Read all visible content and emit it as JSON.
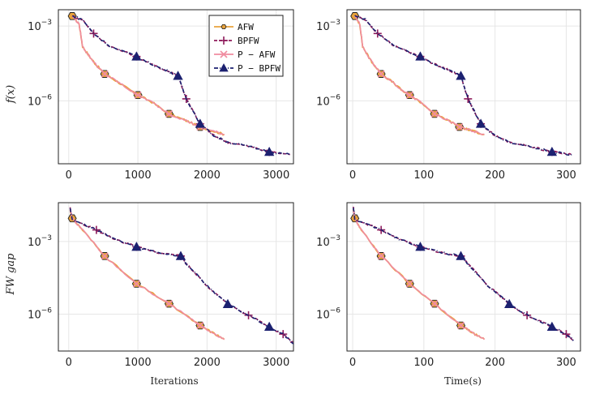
{
  "colors": {
    "AFW": "#E8A33D",
    "BPFW": "#8E1B5B",
    "P_AFW": "#F08CA0",
    "P_BPFW": "#1C2170"
  },
  "chart_data": [
    {
      "type": "line",
      "panel": "top-left",
      "xlabel": "",
      "ylabel": "f(x)",
      "yscale": "log",
      "xlim": [
        -150,
        3250
      ],
      "ylim": [
        3e-09,
        0.0045
      ],
      "xticks": [
        0,
        1000,
        2000,
        3000
      ],
      "yticks": [
        {
          "value": 0.001,
          "label": "10",
          "exp": "−3"
        },
        {
          "value": 1e-06,
          "label": "10",
          "exp": "−6"
        }
      ],
      "legend": {
        "position": "top-right",
        "entries": [
          "AFW",
          "BPFW",
          "P − AFW",
          "P − BPFW"
        ]
      },
      "series": [
        {
          "name": "AFW",
          "x": [
            50,
            150,
            200,
            300,
            400,
            520,
            700,
            900,
            1000,
            1200,
            1450,
            1700,
            1900,
            2100,
            2250
          ],
          "y": [
            0.0025,
            0.0012,
            0.00015,
            6e-05,
            2.7e-05,
            1.2e-05,
            6e-06,
            2.5e-06,
            1.7e-06,
            9e-07,
            3e-07,
            1.6e-07,
            9e-08,
            6e-08,
            4.5e-08
          ]
        },
        {
          "name": "BPFW",
          "x": [
            50,
            200,
            360,
            600,
            980,
            1250,
            1450,
            1580,
            1700,
            1900,
            2100,
            2300,
            2600,
            2900,
            3200
          ],
          "y": [
            0.0025,
            0.0018,
            0.0005,
            0.00015,
            6e-05,
            2.5e-05,
            1.5e-05,
            1e-05,
            1.2e-06,
            1.2e-07,
            4e-08,
            2.2e-08,
            1.5e-08,
            9e-09,
            7e-09
          ]
        },
        {
          "name": "P − AFW",
          "x": [
            50,
            150,
            200,
            300,
            400,
            520,
            700,
            900,
            1000,
            1200,
            1450,
            1700,
            1900,
            2100,
            2250
          ],
          "y": [
            0.0025,
            0.0012,
            0.00015,
            6e-05,
            2.7e-05,
            1.2e-05,
            6e-06,
            2.5e-06,
            1.7e-06,
            9e-07,
            3e-07,
            1.6e-07,
            9e-08,
            6e-08,
            4.5e-08
          ]
        },
        {
          "name": "P − BPFW",
          "x": [
            50,
            200,
            360,
            600,
            980,
            1250,
            1450,
            1580,
            1700,
            1900,
            2100,
            2300,
            2600,
            2900,
            3200
          ],
          "y": [
            0.0025,
            0.0018,
            0.0005,
            0.00015,
            6e-05,
            2.5e-05,
            1.5e-05,
            1e-05,
            1.2e-06,
            1.2e-07,
            4e-08,
            2.2e-08,
            1.5e-08,
            9e-09,
            7e-09
          ]
        }
      ]
    },
    {
      "type": "line",
      "panel": "top-right",
      "xlabel": "",
      "ylabel": "",
      "yscale": "log",
      "xlim": [
        -8,
        320
      ],
      "ylim": [
        3e-09,
        0.0045
      ],
      "xticks": [
        0,
        100,
        200,
        300
      ],
      "yticks": [
        {
          "value": 0.001,
          "label": "10",
          "exp": "−3"
        },
        {
          "value": 1e-06,
          "label": "10",
          "exp": "−6"
        }
      ],
      "series": [
        {
          "name": "AFW",
          "x": [
            3,
            10,
            14,
            22,
            30,
            40,
            55,
            70,
            80,
            95,
            115,
            135,
            150,
            170,
            185
          ],
          "y": [
            0.0025,
            0.0012,
            0.00015,
            6e-05,
            2.7e-05,
            1.2e-05,
            6e-06,
            2.5e-06,
            1.7e-06,
            9e-07,
            3e-07,
            1.6e-07,
            9e-08,
            6e-08,
            4.5e-08
          ]
        },
        {
          "name": "BPFW",
          "x": [
            3,
            18,
            35,
            60,
            95,
            120,
            140,
            152,
            162,
            180,
            200,
            220,
            250,
            280,
            308
          ],
          "y": [
            0.0025,
            0.0018,
            0.0005,
            0.00015,
            6e-05,
            2.5e-05,
            1.5e-05,
            1e-05,
            1.2e-06,
            1.2e-07,
            4e-08,
            2.2e-08,
            1.5e-08,
            9e-09,
            7e-09
          ]
        },
        {
          "name": "P − AFW",
          "x": [
            3,
            10,
            14,
            22,
            30,
            40,
            55,
            70,
            80,
            95,
            115,
            135,
            150,
            170,
            185
          ],
          "y": [
            0.0025,
            0.0012,
            0.00015,
            6e-05,
            2.7e-05,
            1.2e-05,
            6e-06,
            2.5e-06,
            1.7e-06,
            9e-07,
            3e-07,
            1.6e-07,
            9e-08,
            6e-08,
            4.5e-08
          ]
        },
        {
          "name": "P − BPFW",
          "x": [
            3,
            18,
            35,
            60,
            95,
            120,
            140,
            152,
            162,
            180,
            200,
            220,
            250,
            280,
            308
          ],
          "y": [
            0.0025,
            0.0018,
            0.0005,
            0.00015,
            6e-05,
            2.5e-05,
            1.5e-05,
            1e-05,
            1.2e-06,
            1.2e-07,
            4e-08,
            2.2e-08,
            1.5e-08,
            9e-09,
            7e-09
          ]
        }
      ]
    },
    {
      "type": "line",
      "panel": "bottom-left",
      "xlabel": "Iterations",
      "ylabel": "FW gap",
      "yscale": "log",
      "xlim": [
        -150,
        3250
      ],
      "ylim": [
        3e-08,
        0.04
      ],
      "xticks": [
        0,
        1000,
        2000,
        3000
      ],
      "yticks": [
        {
          "value": 0.001,
          "label": "10",
          "exp": "−3"
        },
        {
          "value": 1e-06,
          "label": "10",
          "exp": "−6"
        }
      ],
      "series": [
        {
          "name": "AFW",
          "x": [
            20,
            50,
            200,
            520,
            980,
            1450,
            1900,
            2100,
            2250
          ],
          "y": [
            0.02,
            0.009,
            0.003,
            0.00025,
            1.8e-05,
            2.7e-06,
            3.4e-07,
            1.6e-07,
            9e-08
          ]
        },
        {
          "name": "BPFW",
          "x": [
            20,
            50,
            400,
            650,
            980,
            1300,
            1620,
            1700,
            2000,
            2300,
            2600,
            2900,
            3100,
            3250
          ],
          "y": [
            0.025,
            0.008,
            0.003,
            0.0013,
            0.0006,
            0.00035,
            0.00025,
            0.00012,
            1.5e-05,
            2.6e-06,
            9e-07,
            3e-07,
            1.5e-07,
            6e-08
          ]
        },
        {
          "name": "P − AFW",
          "x": [
            20,
            50,
            200,
            520,
            980,
            1450,
            1900,
            2100,
            2250
          ],
          "y": [
            0.02,
            0.009,
            0.003,
            0.00025,
            1.8e-05,
            2.7e-06,
            3.4e-07,
            1.6e-07,
            9e-08
          ]
        },
        {
          "name": "P − BPFW",
          "x": [
            20,
            50,
            400,
            650,
            980,
            1300,
            1620,
            1700,
            2000,
            2300,
            2600,
            2900,
            3100,
            3250
          ],
          "y": [
            0.025,
            0.008,
            0.003,
            0.0013,
            0.0006,
            0.00035,
            0.00025,
            0.00012,
            1.5e-05,
            2.6e-06,
            9e-07,
            3e-07,
            1.5e-07,
            6e-08
          ]
        }
      ]
    },
    {
      "type": "line",
      "panel": "bottom-right",
      "xlabel": "Time(s)",
      "ylabel": "",
      "yscale": "log",
      "xlim": [
        -8,
        320
      ],
      "ylim": [
        3e-08,
        0.04
      ],
      "xticks": [
        0,
        100,
        200,
        300
      ],
      "yticks": [
        {
          "value": 0.001,
          "label": "10",
          "exp": "−3"
        },
        {
          "value": 1e-06,
          "label": "10",
          "exp": "−6"
        }
      ],
      "series": [
        {
          "name": "AFW",
          "x": [
            1,
            3,
            12,
            40,
            80,
            115,
            152,
            170,
            185
          ],
          "y": [
            0.02,
            0.009,
            0.003,
            0.00025,
            1.8e-05,
            2.7e-06,
            3.4e-07,
            1.6e-07,
            9e-08
          ]
        },
        {
          "name": "BPFW",
          "x": [
            1,
            3,
            40,
            65,
            95,
            125,
            152,
            162,
            190,
            220,
            245,
            280,
            300,
            310
          ],
          "y": [
            0.025,
            0.008,
            0.003,
            0.0013,
            0.0006,
            0.00035,
            0.00025,
            0.00012,
            1.5e-05,
            2.6e-06,
            9e-07,
            3e-07,
            1.5e-07,
            8e-08
          ]
        },
        {
          "name": "P − AFW",
          "x": [
            1,
            3,
            12,
            40,
            80,
            115,
            152,
            170,
            185
          ],
          "y": [
            0.02,
            0.009,
            0.003,
            0.00025,
            1.8e-05,
            2.7e-06,
            3.4e-07,
            1.6e-07,
            9e-08
          ]
        },
        {
          "name": "P − BPFW",
          "x": [
            1,
            3,
            40,
            65,
            95,
            125,
            152,
            162,
            190,
            220,
            245,
            280,
            300,
            310
          ],
          "y": [
            0.025,
            0.008,
            0.003,
            0.0013,
            0.0006,
            0.00035,
            0.00025,
            0.00012,
            1.5e-05,
            2.6e-06,
            9e-07,
            3e-07,
            1.5e-07,
            8e-08
          ]
        }
      ]
    }
  ]
}
